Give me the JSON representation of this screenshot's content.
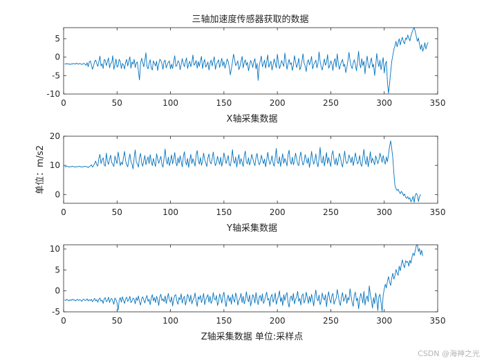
{
  "title": "三轴加速度传感器获取的数据",
  "watermark": "CSDN @海神之光",
  "series_color": "#0072BD",
  "chart_data": [
    {
      "type": "line",
      "xlabel": "X轴采集数据",
      "ylabel": "",
      "xlim": [
        0,
        350
      ],
      "ylim": [
        -10,
        8
      ],
      "xticks": [
        0,
        50,
        100,
        150,
        200,
        250,
        300,
        350
      ],
      "yticks": [
        -10,
        -5,
        0,
        5
      ],
      "grid": false,
      "x_start": 1,
      "x_step": 1,
      "y": [
        -1.8,
        -1.9,
        -1.7,
        -1.9,
        -1.8,
        -2.0,
        -1.8,
        -1.9,
        -1.7,
        -1.8,
        -1.9,
        -1.6,
        -1.8,
        -1.9,
        -1.7,
        -1.8,
        -2.0,
        -1.8,
        -1.7,
        -1.9,
        -2.2,
        -1.5,
        -2.6,
        -1.3,
        -1.0,
        -2.1,
        -3.3,
        -2.4,
        -1.2,
        -0.8,
        -1.7,
        -2.5,
        -1.2,
        0.3,
        -2.4,
        -1.8,
        -3.1,
        -0.6,
        -0.9,
        -2.3,
        -1.2,
        -0.2,
        -2.9,
        -1.7,
        -1.5,
        0.4,
        -3.3,
        -2.1,
        -0.5,
        -2.7,
        -2.3,
        -0.6,
        -1.1,
        -3.1,
        -1.7,
        -2.1,
        -3.2,
        -1.4,
        -0.6,
        -2.4,
        -1.1,
        0.1,
        -3.0,
        -1.3,
        -1.9,
        -0.6,
        -2.8,
        -1.6,
        -1.3,
        -3.8,
        -6.2,
        -1.6,
        -0.3,
        -1.5,
        -2.6,
        -0.9,
        1.2,
        -2.5,
        -3.2,
        -1.6,
        -0.7,
        -2.9,
        -3.5,
        -1.0,
        -1.7,
        -2.4,
        -1.1,
        -3.6,
        -2.0,
        -0.6,
        -0.9,
        -1.8,
        -3.3,
        -1.1,
        -0.8,
        -2.9,
        -2.0,
        -1.4,
        -1.0,
        -3.2,
        -1.9,
        -3.1,
        -1.2,
        0.4,
        -2.5,
        -2.2,
        -1.0,
        -1.4,
        -3.4,
        -2.0,
        -0.4,
        -1.7,
        -2.6,
        -1.2,
        -0.2,
        -3.1,
        -1.9,
        -1.1,
        -2.6,
        -1.4,
        0.6,
        -2.2,
        -1.8,
        -0.9,
        -3.0,
        -1.2,
        -2.5,
        -1.0,
        0.2,
        -3.1,
        -1.5,
        -0.6,
        -2.7,
        -2.1,
        -1.3,
        -3.5,
        -1.7,
        -0.8,
        -2.4,
        -1.0,
        0.1,
        -3.3,
        -1.9,
        -1.4,
        -0.7,
        -2.8,
        -1.6,
        -0.3,
        -2.4,
        -1.2,
        -3.0,
        -1.9,
        -0.5,
        -1.2,
        -2.7,
        -4.8,
        -3.1,
        -1.3,
        0.8,
        -0.6,
        -2.3,
        -1.8,
        -1.0,
        -3.4,
        -2.5,
        -1.1,
        0.2,
        -2.9,
        -1.5,
        -0.7,
        -2.2,
        -1.4,
        -3.7,
        -2.2,
        -0.9,
        -1.6,
        -2.8,
        -1.2,
        -0.4,
        -3.2,
        -1.7,
        -6.3,
        -2.4,
        -1.0,
        0.3,
        -2.6,
        -1.8,
        -0.8,
        -3.0,
        -1.3,
        0.6,
        -2.7,
        -1.9,
        -1.1,
        -3.5,
        -2.1,
        -0.5,
        -1.6,
        -2.9,
        0.8,
        -1.4,
        -3.1,
        -2.2,
        -0.9,
        -1.7,
        -2.5,
        1.1,
        -1.0,
        -3.3,
        -1.8,
        -0.6,
        -2.0,
        -1.5,
        -3.6,
        -2.3,
        0.4,
        -1.2,
        -2.8,
        -1.9,
        -0.3,
        -3.4,
        -2.6,
        -1.1,
        0.9,
        -1.6,
        -2.4,
        -3.9,
        -1.4,
        -0.7,
        -2.1,
        -1.3,
        0.2,
        -3.2,
        -2.0,
        -1.5,
        -0.8,
        -2.9,
        -1.7,
        1.4,
        -1.1,
        -2.6,
        -3.5,
        -1.9,
        -0.5,
        -2.2,
        -1.4,
        0.7,
        -3.0,
        -2.3,
        -1.0,
        -1.8,
        -3.6,
        -1.2,
        -0.4,
        -2.7,
        0.9,
        -1.6,
        -3.3,
        -2.1,
        -1.3,
        -0.6,
        -2.5,
        -1.9,
        -4.2,
        -2.8,
        -1.0,
        1.3,
        -0.9,
        -2.4,
        -3.1,
        -1.5,
        -0.7,
        -2.0,
        -3.7,
        -1.2,
        1.6,
        -1.8,
        -2.9,
        -0.4,
        -2.3,
        -1.1,
        -4.5,
        -1.6,
        0.3,
        -2.1,
        -3.0,
        -1.4,
        -0.2,
        -2.7,
        -1.9,
        -5.0,
        -2.4,
        1.0,
        -1.3,
        -2.6,
        -0.8,
        -3.4,
        -1.7,
        -0.1,
        -4.3,
        -2.0,
        -1.1,
        -6.8,
        -9.8,
        -7.2,
        -4.1,
        -1.2,
        0.4,
        2.1,
        3.0,
        4.3,
        2.8,
        3.9,
        5.0,
        3.3,
        4.6,
        5.4,
        4.1,
        3.6,
        5.2,
        4.8,
        6.0,
        5.1,
        4.4,
        5.8,
        6.7,
        7.5,
        8.6,
        7.0,
        5.6,
        4.3,
        5.2,
        3.5,
        2.1,
        3.4,
        1.6,
        2.5,
        3.9,
        2.2,
        3.3,
        4.0
      ]
    },
    {
      "type": "line",
      "xlabel": "Y轴采集数据",
      "ylabel": "单位：m/s2",
      "xlim": [
        0,
        350
      ],
      "ylim": [
        -3,
        20
      ],
      "xticks": [
        0,
        50,
        100,
        150,
        200,
        250,
        300,
        350
      ],
      "yticks": [
        0,
        10,
        20
      ],
      "grid": false,
      "x_start": 1,
      "x_step": 1,
      "y": [
        9.6,
        9.5,
        9.7,
        9.6,
        9.4,
        9.6,
        9.5,
        9.7,
        9.6,
        9.5,
        9.4,
        9.6,
        9.5,
        9.6,
        9.7,
        9.5,
        9.4,
        9.6,
        9.5,
        9.7,
        9.6,
        9.5,
        9.2,
        9.6,
        9.8,
        10.2,
        9.4,
        9.9,
        10.6,
        11.5,
        10.2,
        9.8,
        12.4,
        13.8,
        10.6,
        11.9,
        12.6,
        10.1,
        9.7,
        14.2,
        11.4,
        10.3,
        12.1,
        13.5,
        11.0,
        10.4,
        9.6,
        13.2,
        11.8,
        10.6,
        14.6,
        12.3,
        9.9,
        11.1,
        10.3,
        12.7,
        14.8,
        11.6,
        10.2,
        9.5,
        12.0,
        13.9,
        11.3,
        10.4,
        8.8,
        12.6,
        15.3,
        11.2,
        10.5,
        9.4,
        12.8,
        14.1,
        10.9,
        9.7,
        11.6,
        13.4,
        10.2,
        11.8,
        12.9,
        10.6,
        13.7,
        11.5,
        9.9,
        12.4,
        10.8,
        9.6,
        14.0,
        12.2,
        10.7,
        11.9,
        13.1,
        10.3,
        9.4,
        12.5,
        15.6,
        11.6,
        10.4,
        12.8,
        9.9,
        11.3,
        13.6,
        10.5,
        12.1,
        14.4,
        11.0,
        9.8,
        12.6,
        10.7,
        13.3,
        11.4,
        9.5,
        12.9,
        14.7,
        11.2,
        10.1,
        12.4,
        9.3,
        11.7,
        13.8,
        10.6,
        12.3,
        11.1,
        9.7,
        13.5,
        15.1,
        11.8,
        10.4,
        12.7,
        10.0,
        11.5,
        14.2,
        12.0,
        10.8,
        9.6,
        12.6,
        13.9,
        11.3,
        10.5,
        12.2,
        14.6,
        11.7,
        9.9,
        10.9,
        13.1,
        11.6,
        10.3,
        12.8,
        9.7,
        11.4,
        14.3,
        12.5,
        10.6,
        11.9,
        13.4,
        10.2,
        9.8,
        12.1,
        15.4,
        11.5,
        10.7,
        12.9,
        9.4,
        11.8,
        13.7,
        10.4,
        12.3,
        11.2,
        9.6,
        13.2,
        14.9,
        11.1,
        10.5,
        12.6,
        10.1,
        11.3,
        13.8,
        12.4,
        10.9,
        9.9,
        12.7,
        14.1,
        11.6,
        10.2,
        11.0,
        13.5,
        11.9,
        10.6,
        12.2,
        9.5,
        11.7,
        14.5,
        12.0,
        10.3,
        11.4,
        13.3,
        10.8,
        9.7,
        12.5,
        15.8,
        11.2,
        10.6,
        13.0,
        9.6,
        11.9,
        14.0,
        10.7,
        12.4,
        11.3,
        9.8,
        13.6,
        15.2,
        11.5,
        10.4,
        12.8,
        10.2,
        11.6,
        14.2,
        12.3,
        10.5,
        9.9,
        12.9,
        14.6,
        11.8,
        10.1,
        11.1,
        13.7,
        12.2,
        10.7,
        12.6,
        9.3,
        11.5,
        14.8,
        12.1,
        10.4,
        11.7,
        13.9,
        10.9,
        9.5,
        12.4,
        16.2,
        11.4,
        10.8,
        13.2,
        9.8,
        12.0,
        14.4,
        10.6,
        12.7,
        11.2,
        9.6,
        13.8,
        15.0,
        11.9,
        10.3,
        12.5,
        10.0,
        11.6,
        14.1,
        12.8,
        10.7,
        9.4,
        12.3,
        14.9,
        11.5,
        10.6,
        11.3,
        13.6,
        12.4,
        10.9,
        12.9,
        9.9,
        11.8,
        14.3,
        12.2,
        10.5,
        11.1,
        13.4,
        10.4,
        9.7,
        12.6,
        15.5,
        11.7,
        10.3,
        13.1,
        9.5,
        11.9,
        14.7,
        10.8,
        12.5,
        11.4,
        10.2,
        13.3,
        12.0,
        10.6,
        11.8,
        14.2,
        12.7,
        11.0,
        13.4,
        11.6,
        10.4,
        12.9,
        11.2,
        13.8,
        16.5,
        18.4,
        15.8,
        12.6,
        7.4,
        3.1,
        2.0,
        1.4,
        1.8,
        0.9,
        0.3,
        1.1,
        0.6,
        -0.4,
        0.2,
        -0.9,
        -1.3,
        -0.7,
        -1.6,
        -1.1,
        -2.5,
        -1.8,
        -0.6,
        -2.7,
        -0.3,
        0.4,
        -0.2,
        -2.4,
        -0.8,
        0.1
      ]
    },
    {
      "type": "line",
      "xlabel": "Z轴采集数据 单位:采样点",
      "ylabel": "",
      "xlim": [
        0,
        350
      ],
      "ylim": [
        -5,
        11
      ],
      "xticks": [
        0,
        50,
        100,
        150,
        200,
        250,
        300,
        350
      ],
      "yticks": [
        -5,
        0,
        5,
        10
      ],
      "grid": false,
      "x_start": 1,
      "x_step": 1,
      "y": [
        -2.1,
        -2.3,
        -2.0,
        -2.2,
        -2.4,
        -2.1,
        -2.3,
        -2.0,
        -2.2,
        -2.1,
        -2.4,
        -2.2,
        -2.0,
        -2.3,
        -2.1,
        -2.2,
        -2.5,
        -2.1,
        -2.0,
        -2.3,
        -2.2,
        -1.9,
        -2.4,
        -2.1,
        -2.3,
        -2.0,
        -2.6,
        -2.2,
        -1.8,
        -2.4,
        -2.1,
        -2.7,
        -2.0,
        -1.7,
        -2.5,
        -2.2,
        -3.0,
        -1.9,
        -1.6,
        -2.6,
        -2.3,
        -1.5,
        -2.8,
        -2.0,
        -1.8,
        -2.4,
        -3.2,
        -1.7,
        -2.1,
        -2.9,
        -4.6,
        -2.3,
        -1.6,
        -2.7,
        -1.4,
        -2.2,
        -3.0,
        -1.9,
        -1.5,
        -2.5,
        -2.1,
        -1.3,
        -2.8,
        -2.4,
        -1.7,
        -2.0,
        -3.1,
        -1.6,
        -2.3,
        -1.2,
        -2.6,
        -3.4,
        -1.9,
        -1.4,
        -2.2,
        -2.9,
        -1.8,
        -1.1,
        -2.5,
        -2.0,
        -3.3,
        -1.7,
        -0.9,
        -2.4,
        -1.6,
        -2.8,
        -1.3,
        -2.1,
        -3.5,
        -1.5,
        -0.8,
        -2.3,
        -1.9,
        -2.6,
        -1.2,
        -3.0,
        -1.8,
        -0.6,
        -2.2,
        -2.7,
        -1.4,
        -3.6,
        -2.0,
        -1.1,
        -0.9,
        -2.5,
        -3.2,
        -1.6,
        -2.1,
        -0.7,
        -2.9,
        -1.8,
        -1.3,
        -3.4,
        -2.3,
        -0.8,
        -1.5,
        -2.6,
        -1.0,
        -3.1,
        -2.2,
        -1.7,
        -0.5,
        -2.4,
        -3.7,
        -1.4,
        -2.0,
        -1.1,
        -2.8,
        -1.9,
        -0.6,
        -3.3,
        -2.1,
        -1.5,
        -0.9,
        -2.7,
        -1.3,
        -3.0,
        -2.4,
        -0.4,
        -1.8,
        -2.2,
        -1.1,
        -3.5,
        -2.6,
        -0.7,
        -1.6,
        -2.9,
        -1.2,
        -0.3,
        -2.3,
        -3.8,
        -1.9,
        -1.0,
        -2.5,
        -1.5,
        -3.2,
        -0.8,
        -2.0,
        -2.7,
        -0.5,
        -1.4,
        -3.4,
        -2.2,
        -1.7,
        -0.6,
        -2.8,
        -1.3,
        -3.1,
        -2.1,
        -0.2,
        -1.8,
        -2.6,
        -1.0,
        -3.6,
        -2.3,
        -0.9,
        -1.5,
        -2.9,
        -0.4,
        -2.0,
        -3.3,
        -1.6,
        -1.1,
        -2.5,
        -0.7,
        -3.0,
        -2.4,
        -1.2,
        -0.3,
        -2.2,
        -1.8,
        -3.7,
        -1.4,
        -0.8,
        -2.7,
        -1.9,
        -0.5,
        -3.2,
        -2.1,
        -1.3,
        0.0,
        -2.6,
        -1.6,
        -3.5,
        -0.9,
        -2.3,
        -1.0,
        -0.4,
        -2.8,
        -3.9,
        -1.7,
        -1.2,
        -2.4,
        -0.6,
        -3.1,
        -2.0,
        -1.5,
        -0.1,
        -2.5,
        -1.8,
        -3.4,
        -1.1,
        -0.7,
        -2.9,
        -2.2,
        -0.3,
        -1.6,
        -3.0,
        -1.3,
        -2.7,
        -0.8,
        -2.1,
        -3.6,
        -1.4,
        0.2,
        -1.9,
        -2.4,
        -1.0,
        -3.3,
        -2.6,
        -0.5,
        -1.7,
        -2.2,
        -0.9,
        -3.8,
        -1.5,
        -0.2,
        -2.0,
        -2.9,
        -1.2,
        -0.6,
        -3.2,
        -2.3,
        -1.8,
        0.3,
        -1.1,
        -2.7,
        -3.5,
        -1.4,
        -0.4,
        -2.5,
        -1.9,
        -0.8,
        -3.0,
        -1.6,
        -2.2,
        0.5,
        -1.3,
        -2.8,
        -3.7,
        -1.0,
        -0.3,
        -2.4,
        -1.7,
        -4.3,
        -2.1,
        -0.6,
        -1.5,
        -2.9,
        -0.1,
        -3.4,
        -1.8,
        -1.2,
        -2.6,
        1.2,
        -0.9,
        -2.3,
        -4.1,
        -1.6,
        -3.1,
        -0.5,
        -2.0,
        -4.7,
        -1.4,
        -0.8,
        -2.7,
        -4.9,
        -1.1,
        0.4,
        1.6,
        0.7,
        2.3,
        3.4,
        2.1,
        1.3,
        3.0,
        4.2,
        2.8,
        3.6,
        5.1,
        4.3,
        3.7,
        5.9,
        4.8,
        6.3,
        7.4,
        6.1,
        5.5,
        7.2,
        6.8,
        7.0,
        5.9,
        7.3,
        6.6,
        8.1,
        9.0,
        8.4,
        9.6,
        10.8,
        11.2,
        9.4,
        10.1,
        8.6,
        9.7,
        8.3
      ]
    }
  ]
}
